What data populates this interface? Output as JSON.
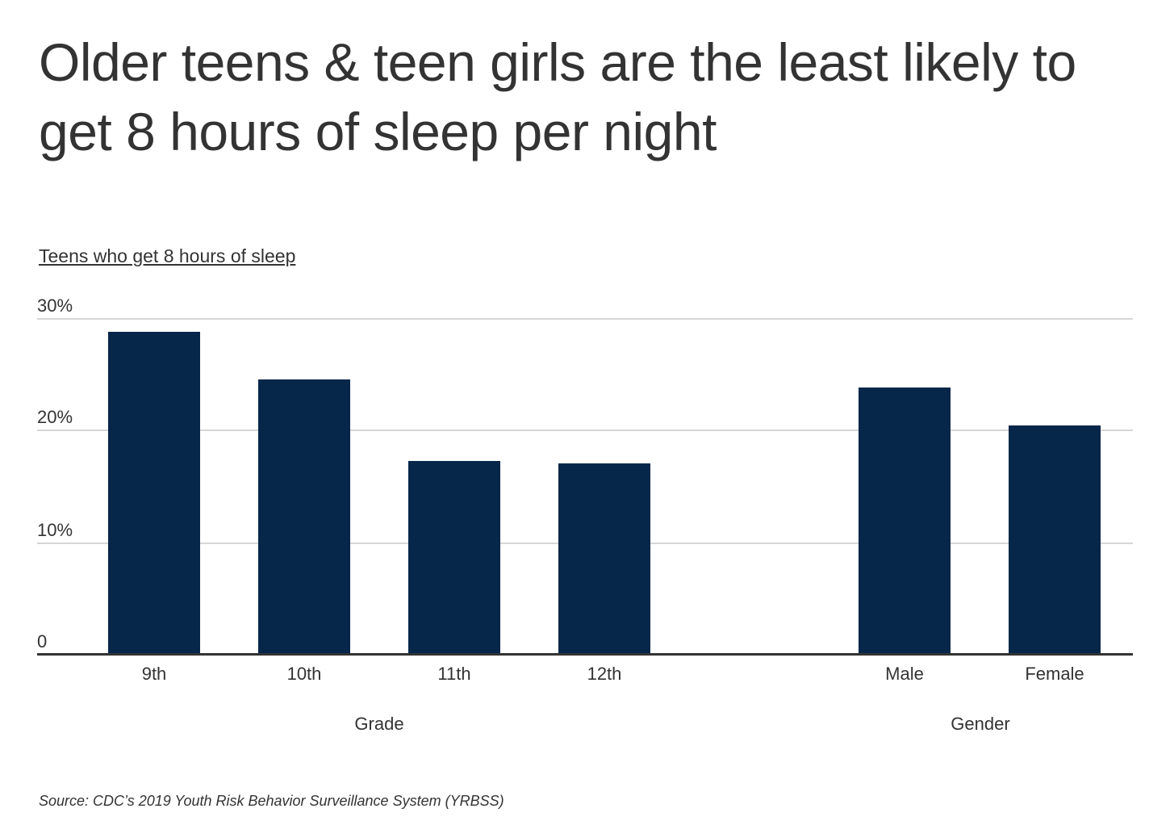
{
  "title": "Older teens & teen girls are the least likely to get 8 hours of sleep per night",
  "subtitle": "Teens who get 8 hours of sleep",
  "source": "Source:  CDC’s 2019 Youth Risk Behavior Surveillance System (YRBSS)",
  "colors": {
    "bar": "#06264a",
    "grid": "#d6d6d6",
    "axis": "#333333"
  },
  "y_ticks": [
    "30%",
    "20%",
    "10%",
    "0"
  ],
  "x_labels": [
    "9th",
    "10th",
    "11th",
    "12th",
    "Male",
    "Female"
  ],
  "groups": [
    "Grade",
    "Gender"
  ],
  "chart_data": {
    "type": "bar",
    "title": "Older teens & teen girls are the least likely to get 8 hours of sleep per night",
    "subtitle": "Teens who get 8 hours of sleep",
    "categories": [
      "9th",
      "10th",
      "11th",
      "12th",
      "Male",
      "Female"
    ],
    "groups": [
      {
        "name": "Grade",
        "categories": [
          "9th",
          "10th",
          "11th",
          "12th"
        ]
      },
      {
        "name": "Gender",
        "categories": [
          "Male",
          "Female"
        ]
      }
    ],
    "values": [
      28.8,
      24.5,
      17.2,
      17.0,
      23.8,
      20.4
    ],
    "xlabel": "",
    "ylabel": "Teens who get 8 hours of sleep (%)",
    "ylim": [
      0,
      30
    ],
    "yticks": [
      0,
      10,
      20,
      30
    ],
    "grid": true,
    "legend": "none",
    "source": "CDC’s 2019 Youth Risk Behavior Surveillance System (YRBSS)"
  }
}
